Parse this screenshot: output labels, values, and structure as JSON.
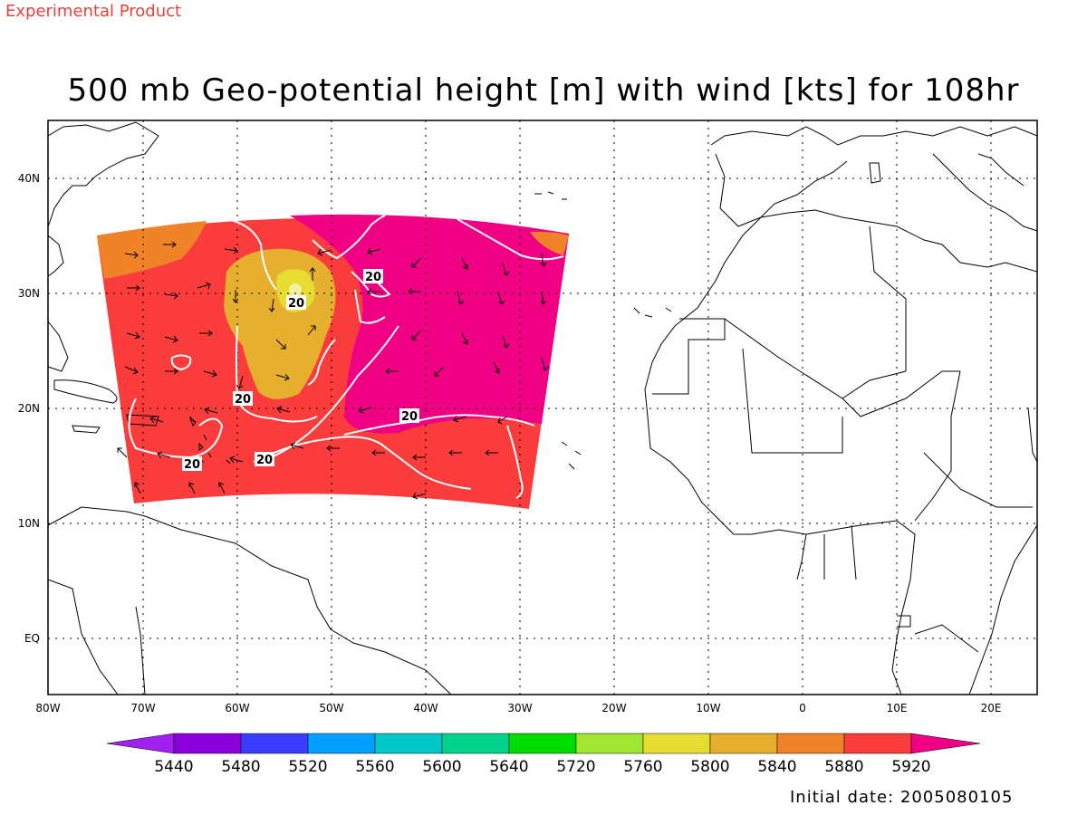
{
  "header": {
    "experimental_label": "Experimental Product",
    "title": "500 mb Geo-potential height [m] with wind [kts] for 108hr",
    "initial_date": "Initial date: 2005080105"
  },
  "axes": {
    "lon_labels": [
      "80W",
      "70W",
      "60W",
      "50W",
      "40W",
      "30W",
      "20W",
      "10W",
      "0",
      "10E",
      "20E"
    ],
    "lat_labels": [
      "40N",
      "30N",
      "20N",
      "10N",
      "EQ"
    ]
  },
  "colorbar": {
    "labels": [
      "5440",
      "5480",
      "5520",
      "5560",
      "5600",
      "5640",
      "5720",
      "5760",
      "5800",
      "5840",
      "5880",
      "5920"
    ],
    "colors": [
      "#a020f0",
      "#8c00dc",
      "#3c3cff",
      "#00a0ff",
      "#00c8c8",
      "#00d28c",
      "#00dc00",
      "#a0e632",
      "#e6dc32",
      "#e6af2d",
      "#f08228",
      "#fa3c3c",
      "#f00082"
    ]
  },
  "contour_label": "20",
  "colors": {
    "red_5880": "#fa3c3c",
    "orange_5840": "#f08228",
    "gold_5800": "#e6af2d",
    "yellow_5760": "#e6dc32",
    "magenta_5920": "#f00082"
  }
}
